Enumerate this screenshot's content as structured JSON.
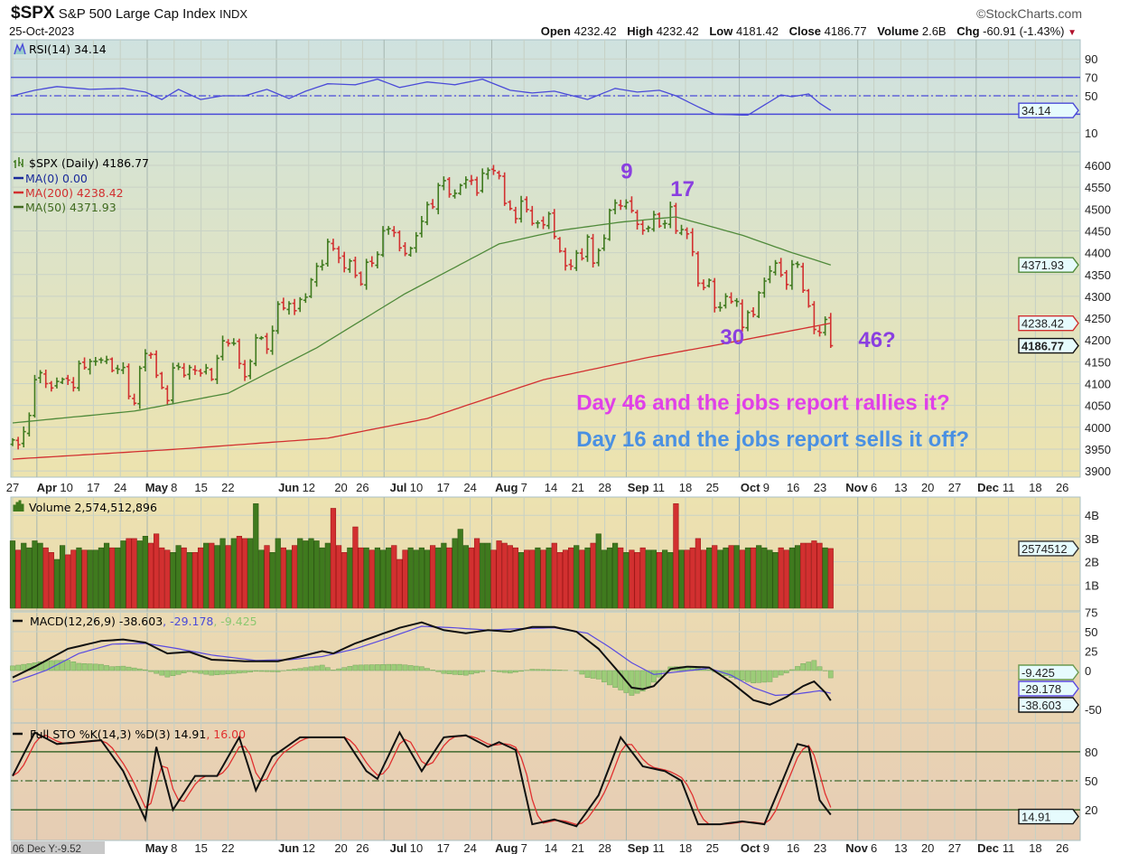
{
  "header": {
    "symbol": "$SPX",
    "name": "S&P 500 Large Cap Index",
    "exchange": "INDX",
    "date": "25-Oct-2023",
    "brand": "©StockCharts.com",
    "open_label": "Open",
    "open": "4232.42",
    "high_label": "High",
    "high": "4232.42",
    "low_label": "Low",
    "low": "4181.42",
    "close_label": "Close",
    "close": "4186.77",
    "volume_label": "Volume",
    "volume": "2.6B",
    "chg_label": "Chg",
    "chg": "-60.91 (-1.43%)",
    "down_arrow": "▼"
  },
  "colors": {
    "up": "#3f7a1e",
    "down": "#d23030",
    "rsi": "#4a4ad8",
    "ma200": "#d23030",
    "ma50": "#4f8a3a",
    "macd": "#111111",
    "signal": "#5a4ae0",
    "hist": "#9ccc78",
    "magenta": "#e040e8",
    "blue": "#4a90e2",
    "purple": "#8a3fe0"
  },
  "chart_data": [
    {
      "type": "line",
      "panel": "rsi",
      "legend": "RSI(14) 34.14",
      "yticks": [
        "90",
        "70",
        "50",
        "10"
      ],
      "ytick_values": [
        90,
        70,
        50,
        10
      ],
      "levels": [
        70,
        50,
        30
      ],
      "last_tag": "34.14",
      "ylim": [
        0,
        100
      ],
      "points": [
        [
          0,
          50
        ],
        [
          4,
          56
        ],
        [
          8,
          60
        ],
        [
          14,
          57
        ],
        [
          20,
          58
        ],
        [
          24,
          54
        ],
        [
          27,
          46
        ],
        [
          30,
          57
        ],
        [
          34,
          46
        ],
        [
          38,
          50
        ],
        [
          42,
          50
        ],
        [
          46,
          57
        ],
        [
          50,
          47
        ],
        [
          53,
          55
        ],
        [
          57,
          63
        ],
        [
          62,
          62
        ],
        [
          66,
          68
        ],
        [
          70,
          59
        ],
        [
          75,
          65
        ],
        [
          80,
          62
        ],
        [
          85,
          68
        ],
        [
          90,
          56
        ],
        [
          94,
          53
        ],
        [
          98,
          55
        ],
        [
          104,
          46
        ],
        [
          109,
          58
        ],
        [
          113,
          54
        ],
        [
          117,
          56
        ],
        [
          120,
          50
        ],
        [
          124,
          38
        ],
        [
          127,
          30
        ],
        [
          133,
          29
        ],
        [
          136,
          40
        ],
        [
          139,
          51
        ],
        [
          141,
          49
        ],
        [
          144,
          52
        ],
        [
          146,
          42
        ],
        [
          148,
          34.14
        ]
      ]
    },
    {
      "type": "ohlc",
      "panel": "price",
      "legend_main": "$SPX (Daily) 4186.77",
      "legend_ma0": "MA(0) 0.00",
      "legend_ma200": "MA(200) 4238.42",
      "legend_ma50": "MA(50) 4371.93",
      "yticks": [
        "4600",
        "4550",
        "4500",
        "4450",
        "4400",
        "4350",
        "4300",
        "4250",
        "4200",
        "4150",
        "4100",
        "4050",
        "4000",
        "3950",
        "3900"
      ],
      "ytick_values": [
        4600,
        4550,
        4500,
        4450,
        4400,
        4350,
        4300,
        4250,
        4200,
        4150,
        4100,
        4050,
        4000,
        3950,
        3900
      ],
      "ylim": [
        3890,
        4620
      ],
      "tags": {
        "ma50": "4371.93",
        "ma200": "4238.42",
        "close": "4186.77"
      },
      "closes": [
        3971,
        3960,
        3990,
        4027,
        4109,
        4125,
        4100,
        4090,
        4105,
        4110,
        4108,
        4091,
        4146,
        4137,
        4151,
        4151,
        4154,
        4155,
        4130,
        4133,
        4137,
        4071,
        4055,
        4135,
        4169,
        4167,
        4119,
        4091,
        4061,
        4136,
        4138,
        4119,
        4137,
        4130,
        4124,
        4136,
        4110,
        4158,
        4198,
        4192,
        4192,
        4146,
        4116,
        4151,
        4205,
        4205,
        4179,
        4221,
        4282,
        4273,
        4283,
        4267,
        4293,
        4298,
        4338,
        4369,
        4372,
        4425,
        4409,
        4388,
        4365,
        4381,
        4348,
        4328,
        4378,
        4376,
        4396,
        4450,
        4455,
        4446,
        4411,
        4398,
        4410,
        4439,
        4472,
        4510,
        4505,
        4554,
        4565,
        4534,
        4536,
        4554,
        4567,
        4566,
        4537,
        4582,
        4589,
        4588,
        4576,
        4513,
        4501,
        4478,
        4518,
        4499,
        4467,
        4468,
        4464,
        4489,
        4437,
        4404,
        4370,
        4369,
        4399,
        4387,
        4436,
        4376,
        4405,
        4433,
        4497,
        4514,
        4507,
        4515,
        4496,
        4465,
        4451,
        4457,
        4487,
        4461,
        4467,
        4505,
        4450,
        4453,
        4443,
        4402,
        4330,
        4320,
        4337,
        4274,
        4274,
        4300,
        4288,
        4288,
        4229,
        4263,
        4258,
        4308,
        4335,
        4358,
        4376,
        4349,
        4327,
        4373,
        4373,
        4314,
        4278,
        4224,
        4217,
        4247,
        4186.77
      ],
      "ma200": [
        [
          0,
          3927
        ],
        [
          30,
          3950
        ],
        [
          57,
          3975
        ],
        [
          75,
          4020
        ],
        [
          96,
          4109
        ],
        [
          115,
          4160
        ],
        [
          128,
          4190
        ],
        [
          148,
          4238.42
        ]
      ],
      "ma50": [
        [
          0,
          4010
        ],
        [
          22,
          4037
        ],
        [
          39,
          4078
        ],
        [
          55,
          4182
        ],
        [
          71,
          4306
        ],
        [
          88,
          4420
        ],
        [
          99,
          4451
        ],
        [
          110,
          4470
        ],
        [
          120,
          4482
        ],
        [
          132,
          4440
        ],
        [
          141,
          4400
        ],
        [
          148,
          4371.93
        ]
      ],
      "annotations": [
        {
          "text": "9",
          "day": 110,
          "price": 4570,
          "color": "purple",
          "size": 24
        },
        {
          "text": "17",
          "day": 119,
          "price": 4530,
          "color": "purple",
          "size": 24
        },
        {
          "text": "30",
          "day": 128,
          "price": 4190,
          "color": "purple",
          "size": 24
        },
        {
          "text": "46?",
          "day": 153,
          "price": 4184,
          "color": "purple",
          "size": 24
        },
        {
          "text": "Day 46 and the jobs report rallies it?",
          "day": 102,
          "price": 4040,
          "color": "magenta",
          "size": 24
        },
        {
          "text": "Day 16 and the jobs report sells it off?",
          "day": 102,
          "price": 3956,
          "color": "blue",
          "size": 24
        }
      ]
    },
    {
      "type": "bar",
      "panel": "volume",
      "legend": "Volume 2,574,512,896",
      "yticks": [
        "4B",
        "3B",
        "2B",
        "1B"
      ],
      "ytick_values": [
        4,
        3,
        2,
        1
      ],
      "unit": "billions",
      "last_tag": "2574512",
      "values": [
        2.9,
        2.5,
        2.8,
        2.6,
        2.9,
        2.8,
        2.6,
        2.4,
        2.1,
        2.7,
        2.3,
        2.5,
        2.6,
        2.5,
        2.5,
        2.5,
        2.6,
        2.8,
        2.6,
        2.6,
        2.9,
        3.0,
        3.0,
        2.9,
        3.1,
        2.8,
        3.2,
        2.6,
        2.5,
        2.4,
        2.7,
        2.6,
        2.4,
        2.4,
        2.6,
        2.8,
        2.8,
        2.7,
        3.0,
        2.7,
        3.0,
        3.1,
        3.0,
        3.0,
        4.5,
        2.5,
        2.7,
        2.4,
        3.0,
        2.6,
        2.5,
        2.7,
        3.0,
        2.9,
        3.0,
        2.9,
        2.6,
        2.8,
        4.3,
        2.7,
        2.4,
        2.6,
        3.5,
        2.6,
        2.6,
        2.5,
        2.6,
        2.5,
        2.6,
        2.7,
        2.1,
        2.5,
        2.6,
        2.5,
        2.6,
        2.5,
        2.7,
        2.6,
        2.8,
        2.6,
        3.0,
        3.4,
        2.7,
        2.6,
        3.0,
        2.8,
        2.8,
        2.5,
        2.9,
        2.8,
        2.7,
        2.6,
        2.4,
        2.5,
        2.5,
        2.6,
        2.5,
        2.6,
        2.8,
        2.4,
        2.5,
        2.6,
        2.7,
        2.5,
        2.6,
        2.8,
        3.2,
        2.5,
        2.6,
        2.8,
        2.6,
        2.4,
        2.5,
        2.4,
        2.6,
        2.5,
        2.5,
        2.4,
        2.5,
        2.4,
        4.5,
        2.5,
        2.5,
        2.6,
        3.0,
        2.5,
        2.6,
        2.7,
        2.5,
        2.6,
        2.7,
        2.7,
        2.5,
        2.6,
        2.6,
        2.7,
        2.6,
        2.5,
        2.4,
        2.6,
        2.5,
        2.6,
        2.7,
        2.8,
        2.8,
        2.9,
        2.8,
        2.6,
        2.57
      ]
    },
    {
      "type": "line",
      "panel": "macd",
      "legend_main": "MACD(12,26,9) -38.603",
      "legend_signal": ", -29.178",
      "legend_hist": ", -9.425",
      "yticks": [
        "75",
        "50",
        "25",
        "0",
        "-50"
      ],
      "ytick_values": [
        75,
        50,
        25,
        0,
        -50
      ],
      "tags": {
        "hist": "-9.425",
        "signal": "-29.178",
        "macd": "-38.603"
      },
      "macd": [
        [
          0,
          -9
        ],
        [
          4,
          5
        ],
        [
          10,
          28
        ],
        [
          16,
          38
        ],
        [
          20,
          40
        ],
        [
          24,
          36
        ],
        [
          28,
          22
        ],
        [
          32,
          24
        ],
        [
          36,
          14
        ],
        [
          42,
          12
        ],
        [
          48,
          12
        ],
        [
          52,
          18
        ],
        [
          56,
          25
        ],
        [
          58,
          22
        ],
        [
          62,
          35
        ],
        [
          66,
          45
        ],
        [
          70,
          55
        ],
        [
          74,
          62
        ],
        [
          78,
          52
        ],
        [
          82,
          48
        ],
        [
          86,
          52
        ],
        [
          90,
          50
        ],
        [
          94,
          56
        ],
        [
          98,
          56
        ],
        [
          102,
          50
        ],
        [
          106,
          28
        ],
        [
          110,
          -5
        ],
        [
          112,
          -22
        ],
        [
          114,
          -24
        ],
        [
          116,
          -20
        ],
        [
          119,
          2
        ],
        [
          122,
          5
        ],
        [
          126,
          4
        ],
        [
          130,
          -15
        ],
        [
          134,
          -38
        ],
        [
          137,
          -44
        ],
        [
          140,
          -34
        ],
        [
          143,
          -20
        ],
        [
          145,
          -14
        ],
        [
          147,
          -28
        ],
        [
          148,
          -38.603
        ]
      ],
      "signal": [
        [
          0,
          -15
        ],
        [
          6,
          0
        ],
        [
          12,
          22
        ],
        [
          18,
          34
        ],
        [
          24,
          35
        ],
        [
          30,
          28
        ],
        [
          36,
          20
        ],
        [
          44,
          13
        ],
        [
          50,
          14
        ],
        [
          56,
          18
        ],
        [
          62,
          28
        ],
        [
          68,
          42
        ],
        [
          74,
          57
        ],
        [
          80,
          55
        ],
        [
          86,
          52
        ],
        [
          92,
          54
        ],
        [
          98,
          55
        ],
        [
          104,
          48
        ],
        [
          108,
          30
        ],
        [
          112,
          10
        ],
        [
          116,
          -5
        ],
        [
          120,
          -2
        ],
        [
          126,
          3
        ],
        [
          130,
          -6
        ],
        [
          134,
          -22
        ],
        [
          138,
          -32
        ],
        [
          142,
          -30
        ],
        [
          146,
          -26
        ],
        [
          148,
          -29.178
        ]
      ]
    },
    {
      "type": "line",
      "panel": "stochastic",
      "legend_main": "Full STO %K(14,3) %D(3) 14.91",
      "legend_d": ", 16.00",
      "yticks": [
        "80",
        "50",
        "20"
      ],
      "ytick_values": [
        80,
        50,
        20
      ],
      "last_tag": "14.91",
      "k": [
        [
          0,
          55
        ],
        [
          4,
          100
        ],
        [
          8,
          88
        ],
        [
          12,
          90
        ],
        [
          16,
          92
        ],
        [
          20,
          60
        ],
        [
          24,
          10
        ],
        [
          26,
          85
        ],
        [
          29,
          20
        ],
        [
          33,
          55
        ],
        [
          37,
          55
        ],
        [
          41,
          95
        ],
        [
          44,
          40
        ],
        [
          47,
          75
        ],
        [
          52,
          95
        ],
        [
          56,
          95
        ],
        [
          60,
          95
        ],
        [
          64,
          60
        ],
        [
          66,
          52
        ],
        [
          70,
          100
        ],
        [
          74,
          60
        ],
        [
          78,
          95
        ],
        [
          82,
          97
        ],
        [
          86,
          85
        ],
        [
          88,
          90
        ],
        [
          91,
          82
        ],
        [
          94,
          5
        ],
        [
          98,
          10
        ],
        [
          102,
          3
        ],
        [
          106,
          35
        ],
        [
          110,
          95
        ],
        [
          114,
          65
        ],
        [
          118,
          60
        ],
        [
          121,
          50
        ],
        [
          124,
          5
        ],
        [
          128,
          5
        ],
        [
          132,
          8
        ],
        [
          136,
          5
        ],
        [
          140,
          60
        ],
        [
          142,
          88
        ],
        [
          144,
          85
        ],
        [
          146,
          30
        ],
        [
          148,
          14.91
        ]
      ],
      "d_last": 16.0
    }
  ],
  "xaxis": {
    "ticks": [
      {
        "label": "27",
        "wd": 0,
        "bold": false
      },
      {
        "label": "Apr",
        "wd": 4.5,
        "bold": true
      },
      {
        "label": "10",
        "wd": 10,
        "bold": false
      },
      {
        "label": "17",
        "wd": 15,
        "bold": false
      },
      {
        "label": "24",
        "wd": 20,
        "bold": false
      },
      {
        "label": "May",
        "wd": 25,
        "bold": true
      },
      {
        "label": "8",
        "wd": 30,
        "bold": false
      },
      {
        "label": "15",
        "wd": 35,
        "bold": false
      },
      {
        "label": "22",
        "wd": 40,
        "bold": false
      },
      {
        "label": "Jun",
        "wd": 49,
        "bold": true
      },
      {
        "label": "12",
        "wd": 55,
        "bold": false
      },
      {
        "label": "20",
        "wd": 61,
        "bold": false
      },
      {
        "label": "26",
        "wd": 65,
        "bold": false
      },
      {
        "label": "Jul",
        "wd": 69,
        "bold": true
      },
      {
        "label": "10",
        "wd": 75,
        "bold": false
      },
      {
        "label": "17",
        "wd": 80,
        "bold": false
      },
      {
        "label": "24",
        "wd": 85,
        "bold": false
      },
      {
        "label": "Aug",
        "wd": 89,
        "bold": true
      },
      {
        "label": "7",
        "wd": 95,
        "bold": false
      },
      {
        "label": "14",
        "wd": 100,
        "bold": false
      },
      {
        "label": "21",
        "wd": 105,
        "bold": false
      },
      {
        "label": "28",
        "wd": 110,
        "bold": false
      },
      {
        "label": "Sep",
        "wd": 114,
        "bold": true
      },
      {
        "label": "11",
        "wd": 120,
        "bold": false
      },
      {
        "label": "18",
        "wd": 125,
        "bold": false
      },
      {
        "label": "25",
        "wd": 130,
        "bold": false
      },
      {
        "label": "Oct",
        "wd": 135,
        "bold": true
      },
      {
        "label": "9",
        "wd": 140,
        "bold": false
      },
      {
        "label": "16",
        "wd": 145,
        "bold": false
      },
      {
        "label": "23",
        "wd": 150,
        "bold": false
      },
      {
        "label": "Nov",
        "wd": 157,
        "bold": true
      },
      {
        "label": "6",
        "wd": 160,
        "bold": false
      },
      {
        "label": "13",
        "wd": 165,
        "bold": false
      },
      {
        "label": "20",
        "wd": 170,
        "bold": false
      },
      {
        "label": "27",
        "wd": 175,
        "bold": false
      },
      {
        "label": "Dec",
        "wd": 179,
        "bold": true
      },
      {
        "label": "11",
        "wd": 185,
        "bold": false
      },
      {
        "label": "18",
        "wd": 190,
        "bold": false
      },
      {
        "label": "26",
        "wd": 195,
        "bold": false
      }
    ],
    "cursor_readout": "06 Dec Y:-9.52"
  }
}
